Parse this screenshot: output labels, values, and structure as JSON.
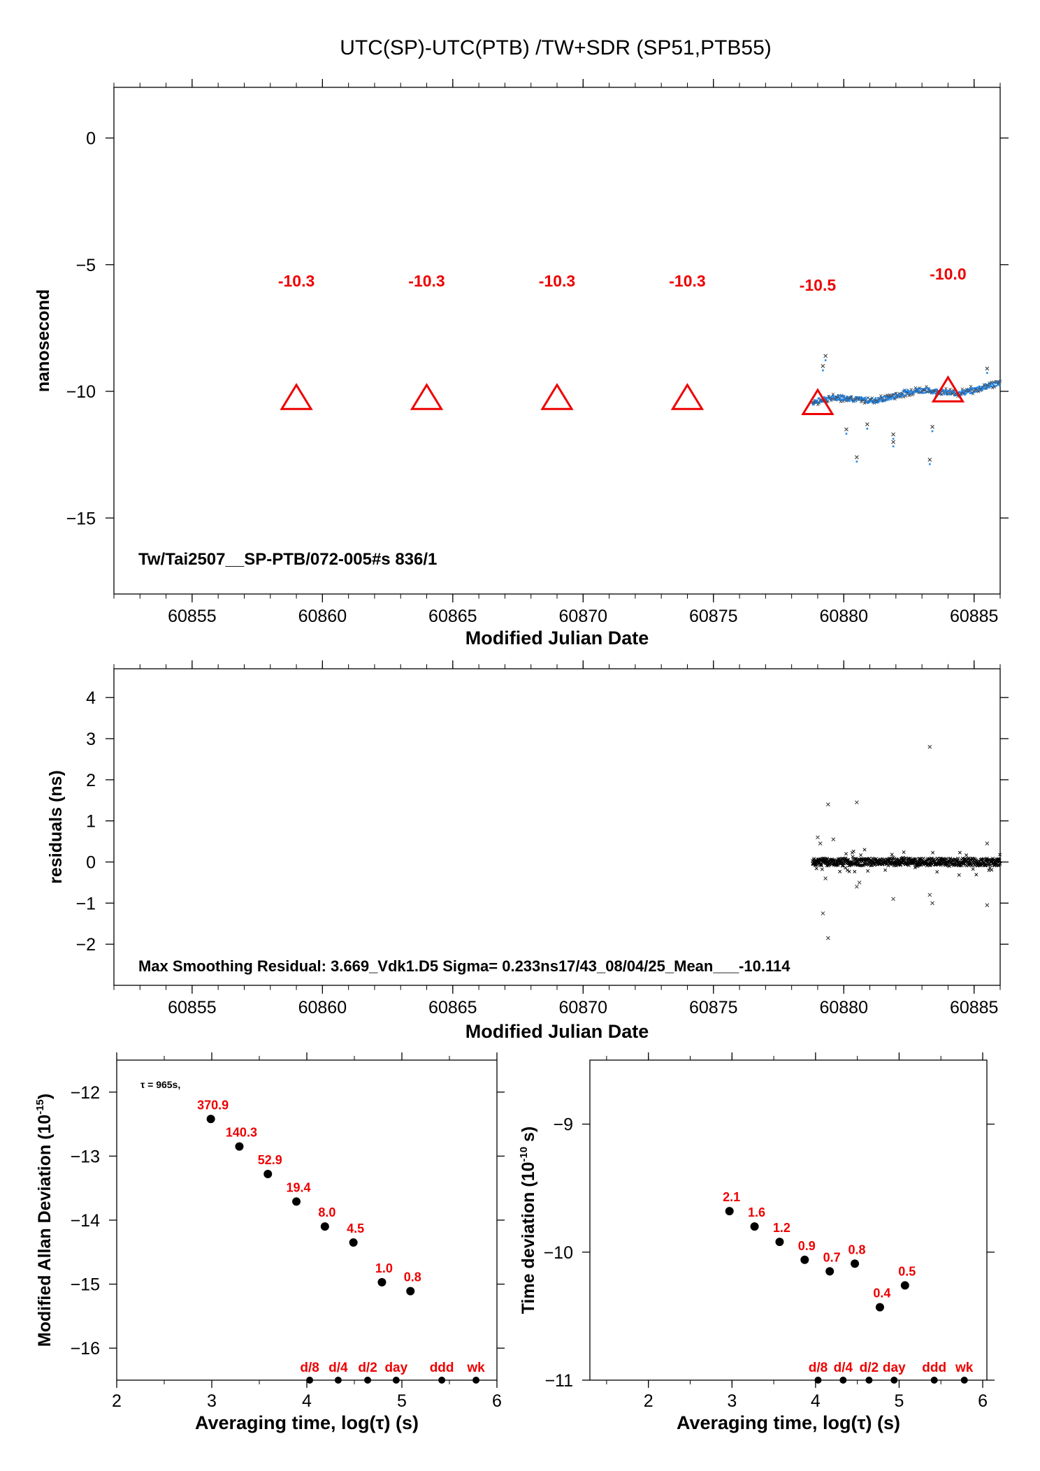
{
  "title": "UTC(SP)-UTC(PTB)  /TW+SDR  (SP51,PTB55)",
  "colors": {
    "red": "#ee0000",
    "blue": "#2288ee",
    "black": "#000000"
  },
  "chart_data": [
    {
      "id": "offset",
      "type": "scatter",
      "xlabel": "Modified Julian Date",
      "ylabel": "nanosecond",
      "xlim": [
        60852,
        60886
      ],
      "ylim": [
        -18,
        2
      ],
      "xticks": [
        60855,
        60860,
        60865,
        60870,
        60875,
        60880,
        60885
      ],
      "yticks": [
        0,
        -5,
        -10,
        -15
      ],
      "annotation": "Tw/Tai2507__SP-PTB/072-005#s  836/1",
      "triangles": [
        {
          "x": 60859,
          "y": -10.3,
          "label": "-10.3"
        },
        {
          "x": 60864,
          "y": -10.3,
          "label": "-10.3"
        },
        {
          "x": 60869,
          "y": -10.3,
          "label": "-10.3"
        },
        {
          "x": 60874,
          "y": -10.3,
          "label": "-10.3"
        },
        {
          "x": 60879,
          "y": -10.5,
          "label": "-10.5"
        },
        {
          "x": 60884,
          "y": -10.0,
          "label": "-10.0"
        }
      ],
      "data_range": [
        60878.8,
        60886
      ],
      "outliers": [
        {
          "x": 60879.3,
          "y": -8.6
        },
        {
          "x": 60879.2,
          "y": -9.0
        },
        {
          "x": 60880.5,
          "y": -12.6
        },
        {
          "x": 60881.9,
          "y": -12.0
        },
        {
          "x": 60883.3,
          "y": -12.7
        },
        {
          "x": 60885.5,
          "y": -9.1
        },
        {
          "x": 60880.1,
          "y": -11.5
        },
        {
          "x": 60881.9,
          "y": -11.7
        },
        {
          "x": 60880.9,
          "y": -11.3
        },
        {
          "x": 60883.4,
          "y": -11.4
        }
      ]
    },
    {
      "id": "residuals",
      "type": "scatter",
      "xlabel": "Modified Julian Date",
      "ylabel": "residuals (ns)",
      "xlim": [
        60852,
        60886
      ],
      "ylim": [
        -3,
        4.7
      ],
      "xticks": [
        60855,
        60860,
        60865,
        60870,
        60875,
        60880,
        60885
      ],
      "yticks": [
        4,
        3,
        2,
        1,
        0,
        -1,
        -2
      ],
      "annotation": "Max Smoothing Residual: 3.669_Vdk1.D5  Sigma= 0.233ns17/43_08/04/25_Mean___-10.114",
      "data_range": [
        60878.8,
        60886
      ],
      "outliers": [
        {
          "x": 60883.3,
          "y": 2.8
        },
        {
          "x": 60880.5,
          "y": 1.45
        },
        {
          "x": 60879.4,
          "y": 1.4
        },
        {
          "x": 60879.4,
          "y": -1.85
        },
        {
          "x": 60879.2,
          "y": -1.25
        },
        {
          "x": 60885.5,
          "y": -1.05
        },
        {
          "x": 60879.0,
          "y": 0.6
        },
        {
          "x": 60879.6,
          "y": 0.55
        },
        {
          "x": 60883.3,
          "y": -0.8
        },
        {
          "x": 60883.4,
          "y": -1.0
        },
        {
          "x": 60881.9,
          "y": -0.9
        },
        {
          "x": 60880.5,
          "y": -0.6
        },
        {
          "x": 60880.6,
          "y": -0.5
        },
        {
          "x": 60879.1,
          "y": 0.45
        },
        {
          "x": 60885.5,
          "y": 0.45
        },
        {
          "x": 60879.3,
          "y": -0.4
        }
      ]
    },
    {
      "id": "mdev",
      "type": "scatter",
      "xlabel": "Averaging time, log(τ) (s)",
      "ylabel": "Modified Allan Deviation (10",
      "ylabel_sup": "-15",
      "ylabel_end": ")",
      "xlim": [
        2,
        6
      ],
      "ylim": [
        -16.5,
        -11.5
      ],
      "xticks": [
        2,
        3,
        4,
        5,
        6
      ],
      "yticks": [
        -12,
        -13,
        -14,
        -15,
        -16
      ],
      "annotation": "τ = 965s,",
      "points": [
        {
          "x": 2.99,
          "y": -12.42,
          "label": "370.9"
        },
        {
          "x": 3.29,
          "y": -12.85,
          "label": "140.3"
        },
        {
          "x": 3.59,
          "y": -13.28,
          "label": "52.9"
        },
        {
          "x": 3.89,
          "y": -13.71,
          "label": "19.4"
        },
        {
          "x": 4.19,
          "y": -14.1,
          "label": "8.0"
        },
        {
          "x": 4.49,
          "y": -14.35,
          "label": "4.5"
        },
        {
          "x": 4.79,
          "y": -14.97,
          "label": "1.0"
        },
        {
          "x": 5.09,
          "y": -15.11,
          "label": "0.8"
        }
      ],
      "markers": [
        {
          "x": 4.03,
          "label": "d/8"
        },
        {
          "x": 4.33,
          "label": "d/4"
        },
        {
          "x": 4.64,
          "label": "d/2"
        },
        {
          "x": 4.94,
          "label": "day"
        },
        {
          "x": 5.42,
          "label": "ddd"
        },
        {
          "x": 5.78,
          "label": "wk"
        }
      ]
    },
    {
      "id": "tdev",
      "type": "scatter",
      "xlabel": "Averaging time, log(τ) (s)",
      "ylabel": "Time deviation (10",
      "ylabel_sup": "-10",
      "ylabel_end": " s)",
      "xlim": [
        1.3,
        6.05
      ],
      "ylim": [
        -11,
        -8.5
      ],
      "xticks": [
        2,
        3,
        4,
        5,
        6
      ],
      "yticks": [
        -9,
        -10,
        -11
      ],
      "points": [
        {
          "x": 2.97,
          "y": -9.68,
          "label": "2.1"
        },
        {
          "x": 3.27,
          "y": -9.8,
          "label": "1.6"
        },
        {
          "x": 3.57,
          "y": -9.92,
          "label": "1.2"
        },
        {
          "x": 3.87,
          "y": -10.06,
          "label": "0.9"
        },
        {
          "x": 4.17,
          "y": -10.15,
          "label": "0.7"
        },
        {
          "x": 4.47,
          "y": -10.09,
          "label": "0.8"
        },
        {
          "x": 4.77,
          "y": -10.43,
          "label": "0.4"
        },
        {
          "x": 5.07,
          "y": -10.26,
          "label": "0.5"
        }
      ],
      "markers": [
        {
          "x": 4.03,
          "label": "d/8"
        },
        {
          "x": 4.33,
          "label": "d/4"
        },
        {
          "x": 4.64,
          "label": "d/2"
        },
        {
          "x": 4.94,
          "label": "day"
        },
        {
          "x": 5.42,
          "label": "ddd"
        },
        {
          "x": 5.78,
          "label": "wk"
        }
      ]
    }
  ]
}
